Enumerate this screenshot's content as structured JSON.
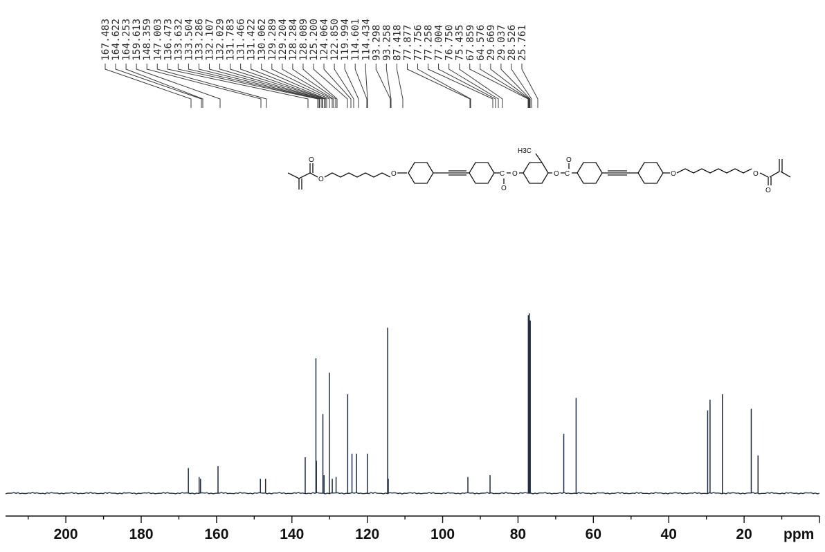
{
  "chart_data": {
    "type": "line",
    "title": "",
    "xlabel": "ppm",
    "ylabel": "",
    "xlim": [
      216,
      0
    ],
    "x_reversed": true,
    "grid": false,
    "x_ticks": [
      "200",
      "180",
      "160",
      "140",
      "120",
      "100",
      "80",
      "60",
      "40",
      "20"
    ],
    "peak_labels": [
      "167.483",
      "164.622",
      "164.253",
      "159.613",
      "148.359",
      "147.003",
      "136.473",
      "133.632",
      "133.504",
      "133.286",
      "132.107",
      "132.029",
      "131.783",
      "131.466",
      "131.422",
      "130.062",
      "129.289",
      "129.204",
      "128.284",
      "128.089",
      "125.200",
      "124.064",
      "122.850",
      "119.994",
      "114.601",
      "114.434",
      "93.298",
      "93.258",
      "87.418",
      "77.877",
      "77.756",
      "77.258",
      "77.004",
      "76.750",
      "75.435",
      "67.859",
      "64.576",
      "29.669",
      "29.037",
      "28.526",
      "25.761"
    ],
    "peaks": [
      {
        "ppm": 167.48,
        "intensity": 0.14
      },
      {
        "ppm": 164.62,
        "intensity": 0.09
      },
      {
        "ppm": 164.25,
        "intensity": 0.08
      },
      {
        "ppm": 159.61,
        "intensity": 0.15
      },
      {
        "ppm": 148.36,
        "intensity": 0.08
      },
      {
        "ppm": 147.0,
        "intensity": 0.08
      },
      {
        "ppm": 136.47,
        "intensity": 0.2
      },
      {
        "ppm": 133.63,
        "intensity": 0.75
      },
      {
        "ppm": 133.5,
        "intensity": 0.18
      },
      {
        "ppm": 131.78,
        "intensity": 0.44
      },
      {
        "ppm": 131.47,
        "intensity": 0.1
      },
      {
        "ppm": 130.06,
        "intensity": 0.67
      },
      {
        "ppm": 129.29,
        "intensity": 0.08
      },
      {
        "ppm": 128.28,
        "intensity": 0.09
      },
      {
        "ppm": 125.2,
        "intensity": 0.55
      },
      {
        "ppm": 124.06,
        "intensity": 0.22
      },
      {
        "ppm": 122.85,
        "intensity": 0.22
      },
      {
        "ppm": 119.99,
        "intensity": 0.22
      },
      {
        "ppm": 114.6,
        "intensity": 0.92
      },
      {
        "ppm": 114.43,
        "intensity": 0.08
      },
      {
        "ppm": 93.3,
        "intensity": 0.09
      },
      {
        "ppm": 87.42,
        "intensity": 0.1
      },
      {
        "ppm": 77.26,
        "intensity": 0.99
      },
      {
        "ppm": 77.0,
        "intensity": 1.0
      },
      {
        "ppm": 76.75,
        "intensity": 0.96
      },
      {
        "ppm": 67.86,
        "intensity": 0.33
      },
      {
        "ppm": 64.58,
        "intensity": 0.53
      },
      {
        "ppm": 29.67,
        "intensity": 0.46
      },
      {
        "ppm": 29.04,
        "intensity": 0.52
      },
      {
        "ppm": 25.76,
        "intensity": 0.55
      },
      {
        "ppm": 18.1,
        "intensity": 0.47
      },
      {
        "ppm": 16.3,
        "intensity": 0.21
      }
    ]
  },
  "structure": {
    "methyl_label": "H3C",
    "oxygen": "O",
    "carbon": "C"
  }
}
